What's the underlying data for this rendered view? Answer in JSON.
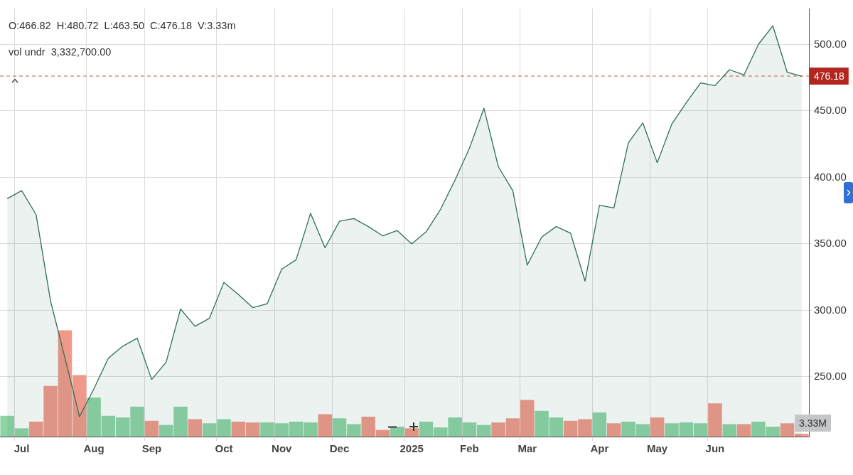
{
  "chart_data": {
    "type": "area",
    "categories": [
      null,
      "Jul",
      null,
      null,
      null,
      null,
      "Aug",
      null,
      null,
      null,
      "Sep",
      null,
      null,
      null,
      null,
      "Oct",
      null,
      null,
      null,
      "Nov",
      null,
      null,
      null,
      "Dec",
      null,
      null,
      null,
      null,
      "2025",
      null,
      null,
      null,
      "Feb",
      null,
      null,
      null,
      "Mar",
      null,
      null,
      null,
      null,
      "Apr",
      null,
      null,
      null,
      "May",
      null,
      null,
      null,
      "Jun",
      null,
      null,
      null,
      null,
      null,
      null
    ],
    "series": [
      {
        "color": "#2f6f55",
        "values": [
          384,
          390,
          372,
          307,
          264,
          220,
          241,
          264,
          273,
          279,
          248,
          261,
          301,
          288,
          294,
          321,
          312,
          302,
          305,
          331,
          338,
          373,
          347,
          367,
          369,
          363,
          356,
          360,
          350,
          359,
          376,
          398,
          422,
          452,
          408,
          390,
          334,
          355,
          363,
          358,
          322,
          379,
          377,
          426,
          441,
          411,
          440,
          456,
          471,
          469,
          481,
          477,
          500,
          514,
          479,
          476.18
        ]
      },
      {
        "type": "bar",
        "axis": "y2",
        "values": [
          25,
          10,
          18,
          61,
          128,
          74,
          47,
          25,
          23,
          36,
          19,
          14,
          36,
          21,
          16,
          21,
          18,
          17,
          17,
          16,
          18,
          17,
          27,
          22,
          15,
          24,
          8,
          12,
          10,
          18,
          11,
          23,
          17,
          14,
          17,
          22,
          44,
          31,
          23,
          19,
          21,
          29,
          16,
          18,
          15,
          23,
          16,
          17,
          16,
          40,
          15,
          15,
          18,
          12,
          16,
          3.33
        ],
        "colors": [
          "#8dd3a5",
          "#8dd3a5",
          "#f0998a",
          "#f0998a",
          "#f0998a",
          "#f0998a",
          "#8dd3a5",
          "#8dd3a5",
          "#8dd3a5",
          "#8dd3a5",
          "#f0998a",
          "#8dd3a5",
          "#8dd3a5",
          "#f0998a",
          "#8dd3a5",
          "#8dd3a5",
          "#f0998a",
          "#f0998a",
          "#8dd3a5",
          "#8dd3a5",
          "#8dd3a5",
          "#8dd3a5",
          "#f0998a",
          "#8dd3a5",
          "#8dd3a5",
          "#f0998a",
          "#f0998a",
          "#8dd3a5",
          "#f0998a",
          "#8dd3a5",
          "#8dd3a5",
          "#8dd3a5",
          "#8dd3a5",
          "#8dd3a5",
          "#f0998a",
          "#f0998a",
          "#f0998a",
          "#8dd3a5",
          "#8dd3a5",
          "#f0998a",
          "#f0998a",
          "#8dd3a5",
          "#f0998a",
          "#8dd3a5",
          "#8dd3a5",
          "#f0998a",
          "#8dd3a5",
          "#8dd3a5",
          "#8dd3a5",
          "#f0998a",
          "#8dd3a5",
          "#f0998a",
          "#8dd3a5",
          "#8dd3a5",
          "#f0998a",
          "#f0998a"
        ],
        "value_labels": [
          null,
          null,
          null,
          null,
          null,
          null,
          null,
          null,
          null,
          null,
          null,
          null,
          null,
          null,
          null,
          null,
          null,
          null,
          null,
          null,
          null,
          null,
          null,
          null,
          null,
          null,
          null,
          null,
          null,
          null,
          null,
          null,
          null,
          null,
          null,
          null,
          null,
          null,
          null,
          null,
          null,
          null,
          null,
          null,
          null,
          null,
          null,
          null,
          null,
          null,
          null,
          null,
          null,
          null,
          null,
          "3.33M"
        ]
      }
    ],
    "ylim": [
      205,
      527
    ],
    "yticks": [
      {
        "value": 250,
        "label": "250.00"
      },
      {
        "value": 300,
        "label": "300.00"
      },
      {
        "value": 350,
        "label": "350.00"
      },
      {
        "value": 400,
        "label": "400.00"
      },
      {
        "value": 450,
        "label": "450.00"
      },
      {
        "value": 500,
        "label": "500.00"
      }
    ],
    "y2lim": [
      0,
      515
    ],
    "ref_lines": [
      {
        "axis": "y",
        "value": 476.18,
        "label": "476.18",
        "color": "#b3261e",
        "line_style": "dashed"
      }
    ],
    "annotations": [
      "O:466.82  H:480.72  L:463.50  C:476.18  V:3.33m",
      "vol undr  3,332,700.00"
    ],
    "grid": true,
    "legend": false,
    "marker": "none"
  }
}
